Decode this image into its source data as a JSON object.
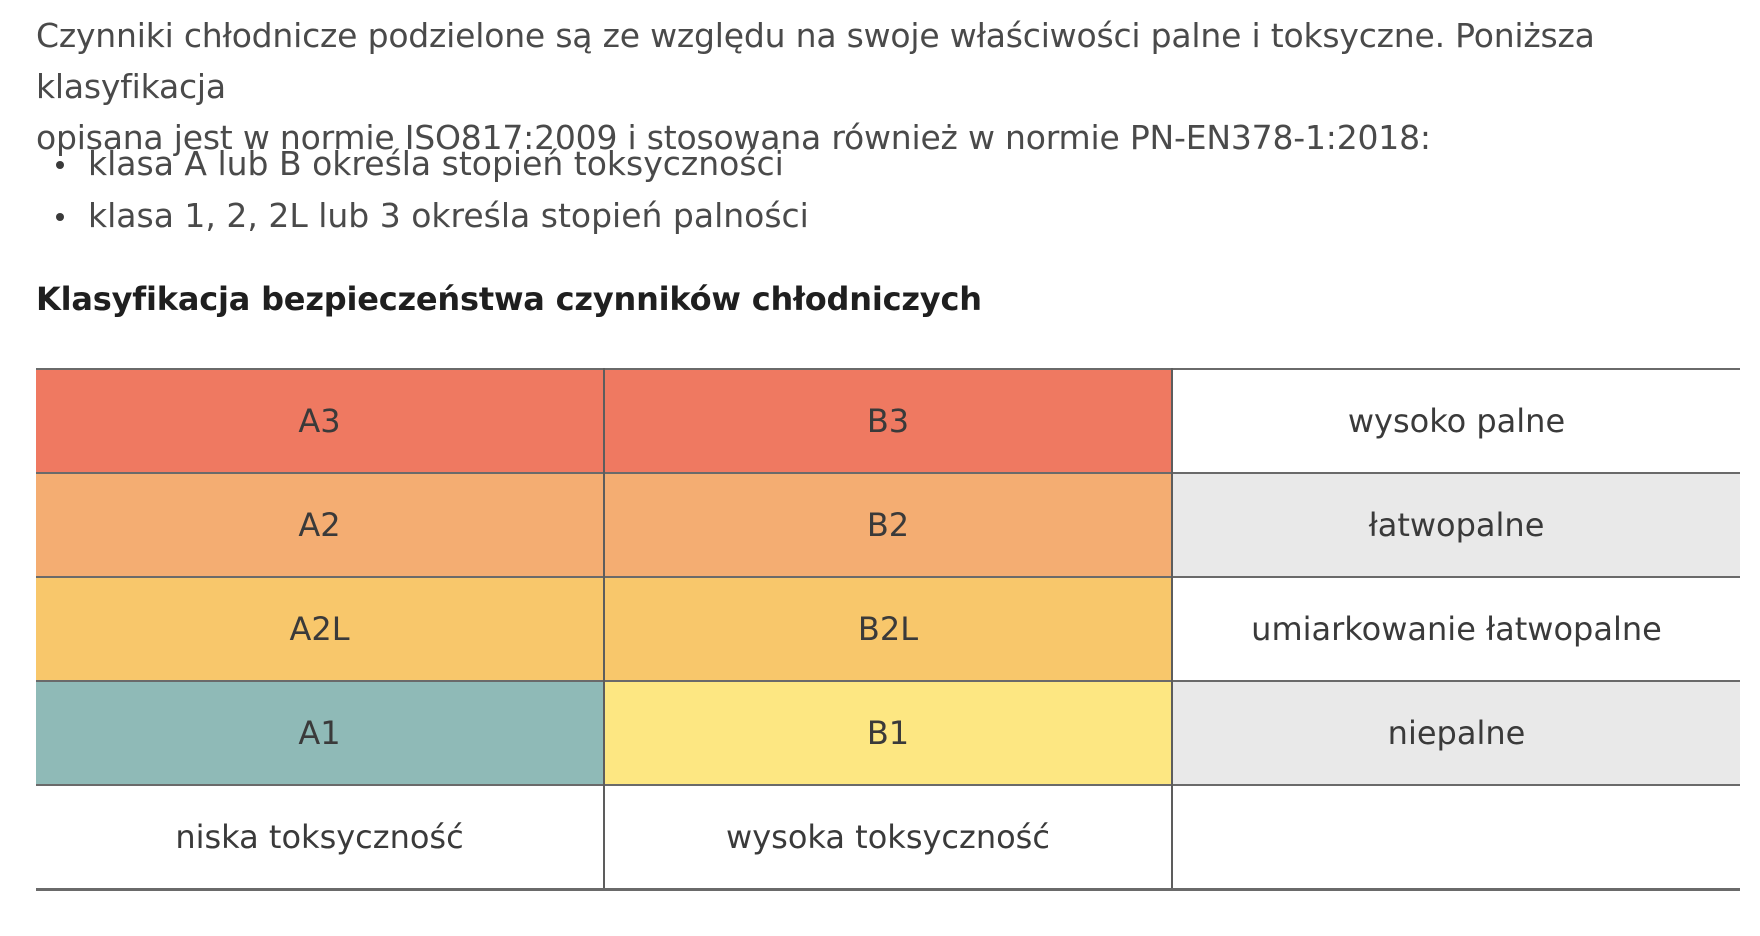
{
  "intro": {
    "line1": "Czynniki chłodnicze podzielone są ze względu na swoje właściwości palne i toksyczne. Poniższa klasyfikacja",
    "line2": "opisana jest w normie ISO817:2009 i stosowana również w normie PN-EN378-1:2018:"
  },
  "bullets": [
    "klasa A lub B określa stopień toksyczności",
    "klasa 1, 2, 2L lub 3 określa stopień palności"
  ],
  "heading": "Klasyfikacja bezpieczeństwa czynników chłodniczych",
  "table": {
    "rows": [
      {
        "a": "A3",
        "b": "B3",
        "label": "wysoko palne"
      },
      {
        "a": "A2",
        "b": "B2",
        "label": "łatwopalne"
      },
      {
        "a": "A2L",
        "b": "B2L",
        "label": "umiarkowanie łatwopalne"
      },
      {
        "a": "A1",
        "b": "B1",
        "label": "niepalne"
      }
    ],
    "footer": {
      "a": "niska toksyczność",
      "b": "wysoka toksyczność"
    }
  },
  "colors": {
    "class3": "#ef7961",
    "class2": "#f4ad72",
    "class2L": "#f8c76b",
    "a1": "#8fbab7",
    "b1": "#fde782",
    "label_shaded": "#e9e9e9",
    "label_plain": "#ffffff"
  }
}
